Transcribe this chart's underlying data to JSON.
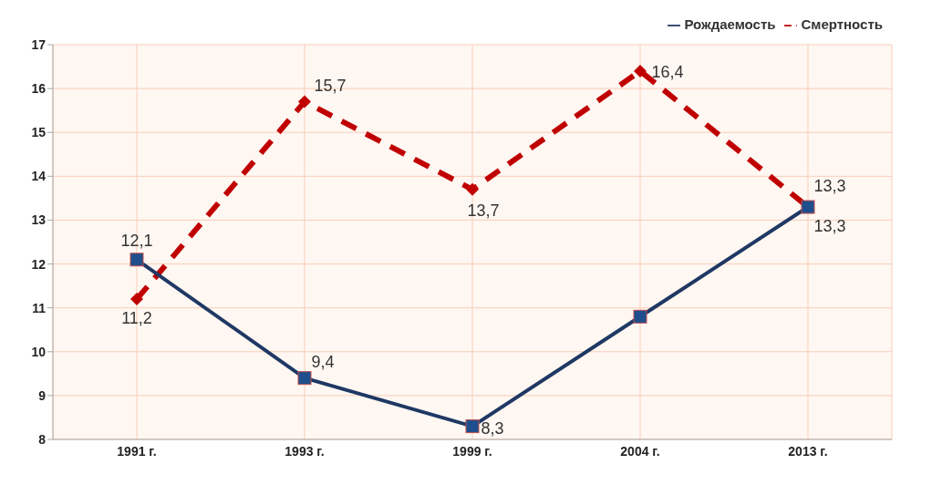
{
  "chart_data": {
    "type": "line",
    "categories": [
      "1991 г.",
      "1993 г.",
      "1999 г.",
      "2004 г.",
      "2013 г."
    ],
    "series": [
      {
        "name": "Смертность",
        "color": "#c00000",
        "marker": "diamond",
        "line_style": "dashed",
        "values": [
          11.2,
          15.7,
          13.7,
          16.4,
          13.3
        ],
        "value_labels": [
          "11,2",
          "15,7",
          "13,7",
          "16,4",
          "13,3"
        ]
      },
      {
        "name": "Рождаемость",
        "color": "#1f3864",
        "marker": "square",
        "line_style": "solid",
        "values": [
          12.1,
          9.4,
          8.3,
          10.8,
          13.3
        ],
        "value_labels": [
          "12,1",
          "9,4",
          "8,3",
          null,
          "13,3"
        ]
      }
    ],
    "ylim": [
      8,
      17
    ],
    "yticks": [
      8,
      9,
      10,
      11,
      12,
      13,
      14,
      15,
      16,
      17
    ],
    "grid": true,
    "legend": "top right"
  }
}
